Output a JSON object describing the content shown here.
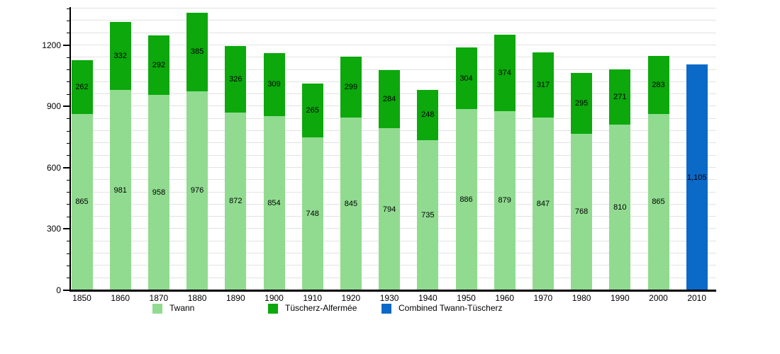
{
  "chart_data": {
    "type": "bar",
    "stacked": true,
    "title": "",
    "xlabel": "",
    "ylabel": "",
    "categories": [
      "1850",
      "1860",
      "1870",
      "1880",
      "1890",
      "1900",
      "1910",
      "1920",
      "1930",
      "1940",
      "1950",
      "1960",
      "1970",
      "1980",
      "1990",
      "2000",
      "2010"
    ],
    "series": [
      {
        "name": "Twann",
        "color": "#90db90",
        "values": [
          865,
          981,
          958,
          976,
          872,
          854,
          748,
          845,
          794,
          735,
          886,
          879,
          847,
          768,
          810,
          865,
          null
        ]
      },
      {
        "name": "Tüscherz-Alfermée",
        "color": "#0ca80c",
        "values": [
          262,
          332,
          292,
          385,
          326,
          309,
          265,
          299,
          284,
          248,
          304,
          374,
          317,
          295,
          271,
          283,
          null
        ]
      },
      {
        "name": "Combined Twann-Tüscherz",
        "color": "#0b69c8",
        "values": [
          null,
          null,
          null,
          null,
          null,
          null,
          null,
          null,
          null,
          null,
          null,
          null,
          null,
          null,
          null,
          null,
          1105
        ]
      }
    ],
    "ylim": [
      0,
      1380
    ],
    "yticks": [
      0,
      300,
      600,
      900,
      1200
    ],
    "minor_grid_step": 60,
    "grid": true,
    "legend_position": "bottom",
    "bar_value_labels": true
  },
  "legend": {
    "items": [
      {
        "label": "Twann",
        "color": "#90db90"
      },
      {
        "label": "Tüscherz-Alfermée",
        "color": "#0ca80c"
      },
      {
        "label": "Combined Twann-Tüscherz",
        "color": "#0b69c8"
      }
    ]
  },
  "colors": {
    "grid": "#e2e2e2",
    "axis": "#000000",
    "background": "#ffffff"
  }
}
